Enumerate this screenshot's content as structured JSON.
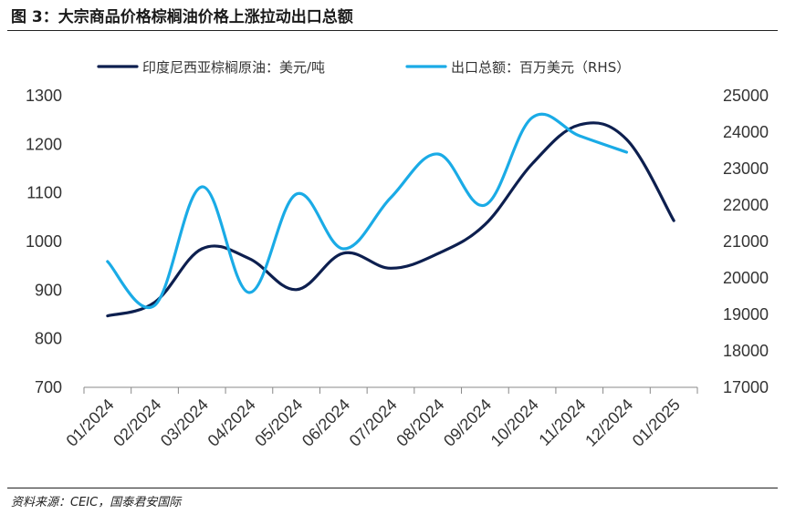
{
  "figure": {
    "title": "图 3：大宗商品价格棕榈油价格上涨拉动出口总额",
    "source": "资料来源：CEIC，国泰君安国际"
  },
  "chart_data": {
    "type": "line",
    "categories": [
      "01/2024",
      "02/2024",
      "03/2024",
      "04/2024",
      "05/2024",
      "06/2024",
      "07/2024",
      "08/2024",
      "09/2024",
      "10/2024",
      "11/2024",
      "12/2024",
      "01/2025"
    ],
    "series": [
      {
        "name": "印度尼西亚棕榈原油：美元/吨",
        "axis": "left",
        "color": "#0d1f4f",
        "values": [
          847,
          875,
          985,
          965,
          901,
          976,
          945,
          975,
          1035,
          1160,
          1240,
          1210,
          1043
        ]
      },
      {
        "name": "出口总额：百万美元（RHS）",
        "axis": "right",
        "color": "#1aabe6",
        "values": [
          20450,
          19250,
          22500,
          19600,
          22300,
          20800,
          22200,
          23400,
          22000,
          24400,
          23900,
          23450,
          null
        ]
      }
    ],
    "y_left": {
      "min": 700,
      "max": 1300,
      "ticks": [
        700,
        800,
        900,
        1000,
        1100,
        1200,
        1300
      ]
    },
    "y_right": {
      "min": 17000,
      "max": 25000,
      "ticks": [
        17000,
        18000,
        19000,
        20000,
        21000,
        22000,
        23000,
        24000,
        25000
      ]
    },
    "legend_position": "top",
    "grid": false
  }
}
